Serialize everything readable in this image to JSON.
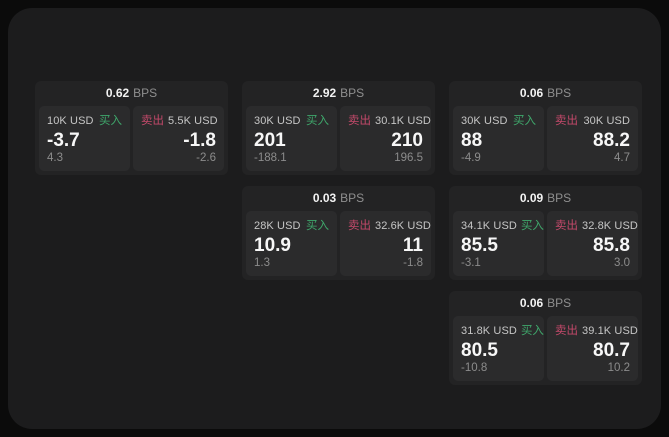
{
  "labels": {
    "bps_unit": "BPS",
    "buy": "买入",
    "sell": "卖出"
  },
  "colors": {
    "buy_accent": "#3fa76b",
    "sell_accent": "#c3496a",
    "outer_bg": "#0b0b0b",
    "panel_bg": "#1c1c1d",
    "card_bg": "#232324",
    "tile_bg": "#2b2b2c"
  },
  "cards": [
    {
      "bps": "0.62",
      "buy": {
        "amount": "10K USD",
        "price": "-3.7",
        "delta": "4.3"
      },
      "sell": {
        "amount": "5.5K USD",
        "price": "-1.8",
        "delta": "-2.6"
      }
    },
    {
      "bps": "2.92",
      "buy": {
        "amount": "30K USD",
        "price": "201",
        "delta": "-188.1"
      },
      "sell": {
        "amount": "30.1K USD",
        "price": "210",
        "delta": "196.5"
      }
    },
    {
      "bps": "0.06",
      "buy": {
        "amount": "30K USD",
        "price": "88",
        "delta": "-4.9"
      },
      "sell": {
        "amount": "30K USD",
        "price": "88.2",
        "delta": "4.7"
      }
    },
    {
      "bps": "0.03",
      "buy": {
        "amount": "28K USD",
        "price": "10.9",
        "delta": "1.3"
      },
      "sell": {
        "amount": "32.6K USD",
        "price": "11",
        "delta": "-1.8"
      }
    },
    {
      "bps": "0.09",
      "buy": {
        "amount": "34.1K USD",
        "price": "85.5",
        "delta": "-3.1"
      },
      "sell": {
        "amount": "32.8K USD",
        "price": "85.8",
        "delta": "3.0"
      }
    },
    {
      "bps": "0.06",
      "buy": {
        "amount": "31.8K USD",
        "price": "80.5",
        "delta": "-10.8"
      },
      "sell": {
        "amount": "39.1K USD",
        "price": "80.7",
        "delta": "10.2"
      }
    }
  ]
}
